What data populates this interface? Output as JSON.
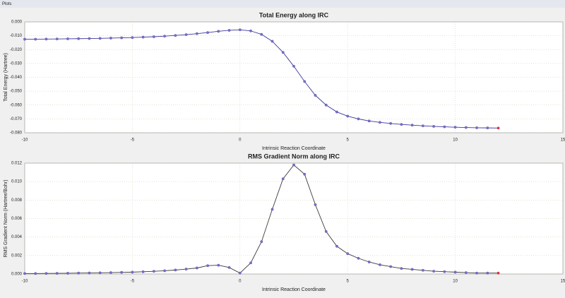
{
  "window_title": "Plots",
  "chart_data": [
    {
      "type": "line",
      "title": "Total Energy along IRC",
      "x_label": "Intrinsic Reaction Coordinate",
      "y_label": "Total Energy (Hartree)",
      "x": [
        -10,
        -9.5,
        -9,
        -8.5,
        -8,
        -7.5,
        -7,
        -6.5,
        -6,
        -5.5,
        -5,
        -4.5,
        -4,
        -3.5,
        -3,
        -2.5,
        -2,
        -1.5,
        -1,
        -0.5,
        0,
        0.5,
        1,
        1.5,
        2,
        2.5,
        3,
        3.5,
        4,
        4.5,
        5,
        5.5,
        6,
        6.5,
        7,
        7.5,
        8,
        8.5,
        9,
        9.5,
        10,
        10.5,
        11,
        11.5,
        12
      ],
      "series": [
        {
          "color": "#3a3a9a",
          "marker_color": "#7b6fd0",
          "highlight_color": "#e03030",
          "values": [
            -0.0125,
            -0.0125,
            -0.0124,
            -0.0123,
            -0.0122,
            -0.0121,
            -0.012,
            -0.0119,
            -0.0117,
            -0.0115,
            -0.0113,
            -0.011,
            -0.0107,
            -0.0103,
            -0.0098,
            -0.0092,
            -0.0085,
            -0.0077,
            -0.0068,
            -0.0061,
            -0.0057,
            -0.0065,
            -0.009,
            -0.014,
            -0.022,
            -0.032,
            -0.043,
            -0.053,
            -0.06,
            -0.065,
            -0.068,
            -0.07,
            -0.0715,
            -0.0725,
            -0.0733,
            -0.074,
            -0.0745,
            -0.075,
            -0.0754,
            -0.0757,
            -0.076,
            -0.0762,
            -0.0764,
            -0.0765,
            -0.0766
          ]
        }
      ],
      "xlim": [
        -10,
        15
      ],
      "xticks": [
        -10,
        -5,
        0,
        5,
        10,
        15
      ],
      "ylim": [
        -0.08,
        0
      ],
      "yticks": [
        {
          "value": 0,
          "label": "0.000"
        },
        {
          "value": -0.01,
          "label": "-0.010"
        },
        {
          "value": -0.02,
          "label": "-0.020"
        },
        {
          "value": -0.03,
          "label": "-0.030"
        },
        {
          "value": -0.04,
          "label": "-0.040"
        },
        {
          "value": -0.05,
          "label": "-0.050"
        },
        {
          "value": -0.06,
          "label": "-0.060"
        },
        {
          "value": -0.07,
          "label": "-0.070"
        },
        {
          "value": -0.08,
          "label": "-0.080"
        }
      ],
      "grid": true
    },
    {
      "type": "line",
      "title": "RMS Gradient Norm along IRC",
      "x_label": "Intrinsic Reaction Coordinate",
      "y_label": "RMS Gradient Norm (Hartree/Bohr)",
      "x": [
        -10,
        -9.5,
        -9,
        -8.5,
        -8,
        -7.5,
        -7,
        -6.5,
        -6,
        -5.5,
        -5,
        -4.5,
        -4,
        -3.5,
        -3,
        -2.5,
        -2,
        -1.5,
        -1,
        -0.5,
        0,
        0.5,
        1,
        1.5,
        2,
        2.5,
        3,
        3.5,
        4,
        4.5,
        5,
        5.5,
        6,
        6.5,
        7,
        7.5,
        8,
        8.5,
        9,
        9.5,
        10,
        10.5,
        11,
        11.5,
        12
      ],
      "series": [
        {
          "color": "#3a3a3a",
          "marker_color": "#7b6fd0",
          "highlight_color": "#e03030",
          "values": [
            5e-05,
            5e-05,
            6e-05,
            7e-05,
            8e-05,
            0.0001,
            0.00011,
            0.00013,
            0.00015,
            0.00018,
            0.0002,
            0.00024,
            0.00029,
            0.00035,
            0.00043,
            0.00053,
            0.00065,
            0.0009,
            0.00095,
            0.0007,
            0.0001,
            0.0012,
            0.0035,
            0.007,
            0.0103,
            0.0118,
            0.0108,
            0.0075,
            0.0046,
            0.003,
            0.0022,
            0.0017,
            0.0013,
            0.001,
            0.0008,
            0.0006,
            0.0005,
            0.0004,
            0.0003,
            0.00025,
            0.0002,
            0.00015,
            0.0001,
            0.0001,
            0.0001
          ]
        }
      ],
      "xlim": [
        -10,
        15
      ],
      "xticks": [
        -10,
        -5,
        0,
        5,
        10,
        15
      ],
      "ylim": [
        0,
        0.012
      ],
      "yticks": [
        {
          "value": 0,
          "label": "0.000"
        },
        {
          "value": 0.002,
          "label": "0.002"
        },
        {
          "value": 0.004,
          "label": "0.004"
        },
        {
          "value": 0.006,
          "label": "0.006"
        },
        {
          "value": 0.008,
          "label": "0.008"
        },
        {
          "value": 0.01,
          "label": "0.010"
        },
        {
          "value": 0.012,
          "label": "0.012"
        }
      ],
      "grid": true
    }
  ]
}
